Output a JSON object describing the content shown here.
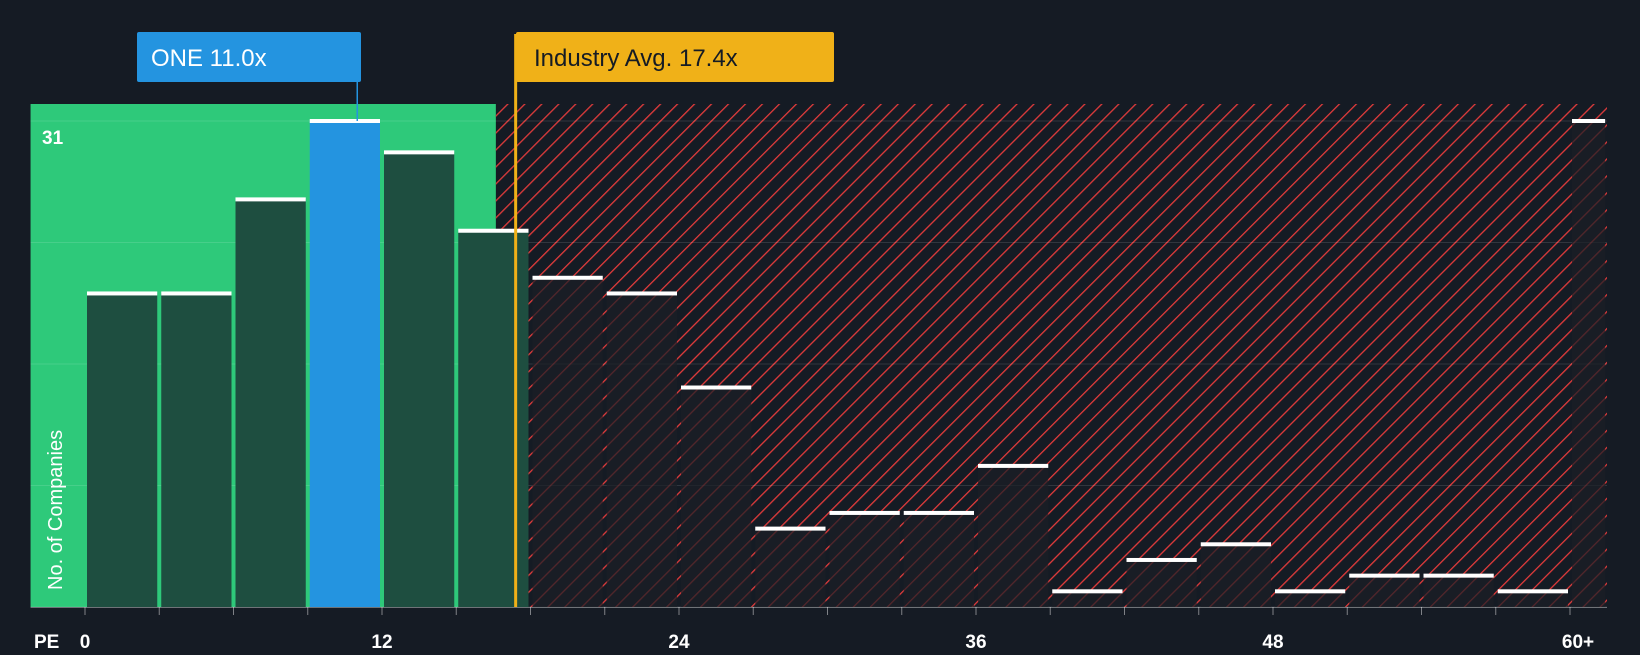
{
  "chart_data": {
    "type": "bar",
    "title": "",
    "xlabel": "PE",
    "ylabel": "No. of Companies",
    "ylim": [
      0,
      31
    ],
    "y_top_tick_label": "31",
    "x_tick_labels": [
      {
        "value": 0,
        "label": "0"
      },
      {
        "value": 12,
        "label": "12"
      },
      {
        "value": 24,
        "label": "24"
      },
      {
        "value": 36,
        "label": "36"
      },
      {
        "value": 48,
        "label": "48"
      },
      {
        "value": 60,
        "label": "60+"
      }
    ],
    "bins": [
      {
        "start": 0,
        "end": 3,
        "count": 20
      },
      {
        "start": 3,
        "end": 6,
        "count": 20
      },
      {
        "start": 6,
        "end": 9,
        "count": 26
      },
      {
        "start": 9,
        "end": 12,
        "count": 31
      },
      {
        "start": 12,
        "end": 15,
        "count": 29
      },
      {
        "start": 15,
        "end": 18,
        "count": 24
      },
      {
        "start": 18,
        "end": 21,
        "count": 21
      },
      {
        "start": 21,
        "end": 24,
        "count": 20
      },
      {
        "start": 24,
        "end": 27,
        "count": 14
      },
      {
        "start": 27,
        "end": 30,
        "count": 5
      },
      {
        "start": 30,
        "end": 33,
        "count": 6
      },
      {
        "start": 33,
        "end": 36,
        "count": 6
      },
      {
        "start": 36,
        "end": 39,
        "count": 9
      },
      {
        "start": 39,
        "end": 42,
        "count": 1
      },
      {
        "start": 42,
        "end": 45,
        "count": 3
      },
      {
        "start": 45,
        "end": 48,
        "count": 4
      },
      {
        "start": 48,
        "end": 51,
        "count": 1
      },
      {
        "start": 51,
        "end": 54,
        "count": 2
      },
      {
        "start": 54,
        "end": 57,
        "count": 2
      },
      {
        "start": 57,
        "end": 60,
        "count": 1
      },
      {
        "start": 60,
        "end": 61.5,
        "count": 31
      }
    ],
    "company": {
      "name": "ONE",
      "value": 11.0,
      "label": "ONE 11.0x"
    },
    "industry_average": {
      "value": 17.4,
      "label": "Industry Avg. 17.4x"
    },
    "highlight_bin_index": 3,
    "fair_region": {
      "from": -2.2,
      "to": 16.6
    },
    "over_region": {
      "from": 16.6,
      "to": 61.5
    },
    "grid": true,
    "colors": {
      "background": "#151b24",
      "fair_region": "#2ec97a",
      "bar_fair": "#1e4e40",
      "bar_highlight": "#2494e0",
      "bar_over": "#1c1e26",
      "hatch": "#e23b3b",
      "bar_cap": "#ffffff",
      "company_label_bg": "#2494e0",
      "industry_label_bg": "#f0b118",
      "industry_line": "#f0b118",
      "axis_text": "#ffffff"
    }
  }
}
